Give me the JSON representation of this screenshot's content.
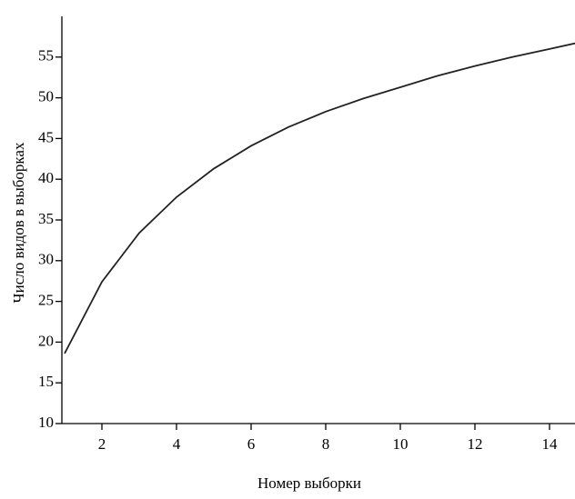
{
  "chart_data": {
    "type": "line",
    "x_label": "Номер выборки",
    "y_label": "Число видов в выборках",
    "x": [
      1,
      2,
      3,
      4,
      5,
      6,
      7,
      8,
      9,
      10,
      11,
      12,
      13,
      14,
      15
    ],
    "series": [
      {
        "color": "#222222",
        "values": [
          18.6,
          27.4,
          33.4,
          37.8,
          41.3,
          44.1,
          46.4,
          48.3,
          49.9,
          51.3,
          52.7,
          53.9,
          55.0,
          56.0,
          57.0
        ]
      }
    ],
    "xlim": [
      1,
      15
    ],
    "xticks": [
      2,
      4,
      6,
      8,
      10,
      12,
      14
    ],
    "ylim": [
      10,
      60
    ],
    "yticks": [
      10,
      15,
      20,
      25,
      30,
      35,
      40,
      45,
      50,
      55
    ]
  }
}
